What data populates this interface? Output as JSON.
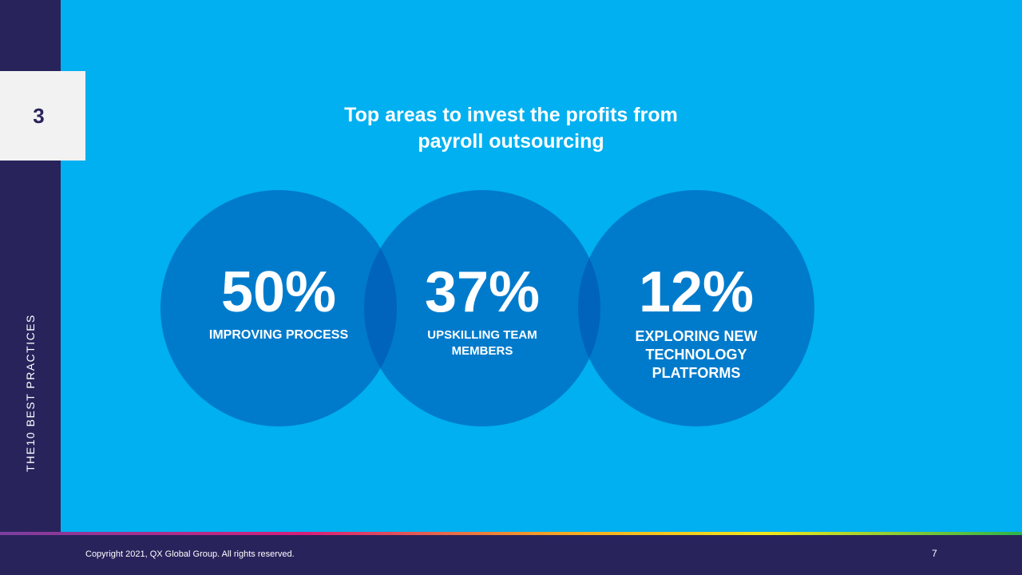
{
  "sidebar": {
    "section_number": "3",
    "vertical_label": "THE10 BEST PRACTICES"
  },
  "title": "Top areas to invest the profits from payroll outsourcing",
  "stats": [
    {
      "value": "50%",
      "label": "IMPROVING PROCESS"
    },
    {
      "value": "37%",
      "label": "UPSKILLING TEAM MEMBERS"
    },
    {
      "value": "12%",
      "label": "EXPLORING NEW TECHNOLOGY PLATFORMS"
    }
  ],
  "footer": {
    "copyright": "Copyright 2021, QX  Global Group. All rights reserved.",
    "page_number": "7"
  }
}
